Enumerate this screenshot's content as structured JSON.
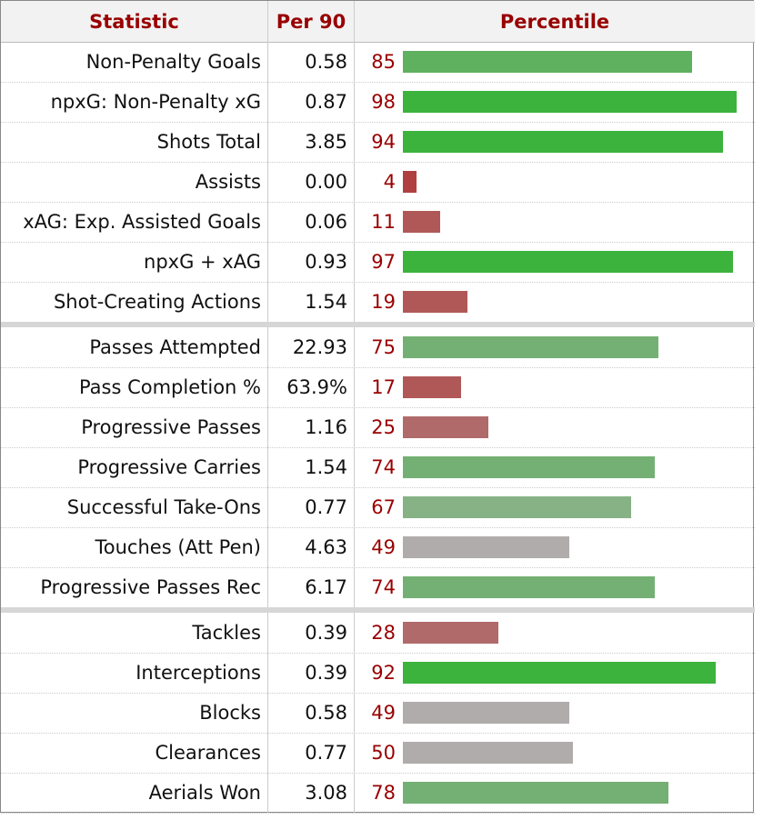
{
  "headers": {
    "statistic": "Statistic",
    "per90": "Per 90",
    "percentile": "Percentile"
  },
  "colors": {
    "elite_green": "#3cb33c",
    "good_green": "#5fb05f",
    "mid_green": "#74b074",
    "pale_green": "#86b286",
    "neutral_gray": "#b0acac",
    "mid_red": "#b06a6a",
    "low_red": "#b05858",
    "bottom_red": "#b04040"
  },
  "chart_data": {
    "type": "table",
    "title": "",
    "xlabel": "Percentile",
    "xlim": [
      0,
      100
    ],
    "groups": [
      {
        "rows": [
          {
            "stat": "Non-Penalty Goals",
            "per90": "0.58",
            "percentile": 85
          },
          {
            "stat": "npxG: Non-Penalty xG",
            "per90": "0.87",
            "percentile": 98
          },
          {
            "stat": "Shots Total",
            "per90": "3.85",
            "percentile": 94
          },
          {
            "stat": "Assists",
            "per90": "0.00",
            "percentile": 4
          },
          {
            "stat": "xAG: Exp. Assisted Goals",
            "per90": "0.06",
            "percentile": 11
          },
          {
            "stat": "npxG + xAG",
            "per90": "0.93",
            "percentile": 97
          },
          {
            "stat": "Shot-Creating Actions",
            "per90": "1.54",
            "percentile": 19
          }
        ]
      },
      {
        "rows": [
          {
            "stat": "Passes Attempted",
            "per90": "22.93",
            "percentile": 75
          },
          {
            "stat": "Pass Completion %",
            "per90": "63.9%",
            "percentile": 17
          },
          {
            "stat": "Progressive Passes",
            "per90": "1.16",
            "percentile": 25
          },
          {
            "stat": "Progressive Carries",
            "per90": "1.54",
            "percentile": 74
          },
          {
            "stat": "Successful Take-Ons",
            "per90": "0.77",
            "percentile": 67
          },
          {
            "stat": "Touches (Att Pen)",
            "per90": "4.63",
            "percentile": 49
          },
          {
            "stat": "Progressive Passes Rec",
            "per90": "6.17",
            "percentile": 74
          }
        ]
      },
      {
        "rows": [
          {
            "stat": "Tackles",
            "per90": "0.39",
            "percentile": 28
          },
          {
            "stat": "Interceptions",
            "per90": "0.39",
            "percentile": 92
          },
          {
            "stat": "Blocks",
            "per90": "0.58",
            "percentile": 49
          },
          {
            "stat": "Clearances",
            "per90": "0.77",
            "percentile": 50
          },
          {
            "stat": "Aerials Won",
            "per90": "3.08",
            "percentile": 78
          }
        ]
      }
    ]
  }
}
